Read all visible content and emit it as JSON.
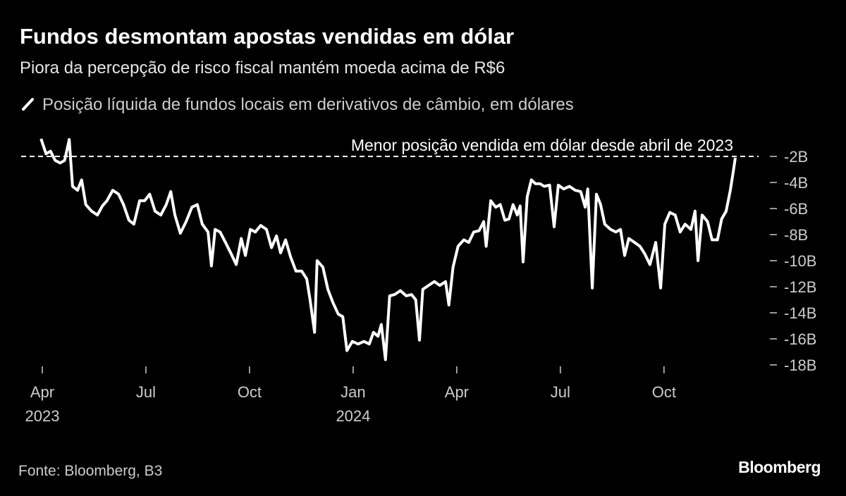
{
  "chart_data": {
    "type": "line",
    "title": "Fundos desmontam apostas vendidas em dólar",
    "subtitle": "Piora da percepção de risco fiscal mantém moeda acima de R$6",
    "source": "Fonte: Bloomberg, B3",
    "brand": "Bloomberg",
    "reference_line": {
      "value": -2,
      "label": "Menor posição vendida em dólar desde abril de 2023"
    },
    "x": [
      2023.247,
      2023.259,
      2023.27,
      2023.281,
      2023.293,
      2023.304,
      2023.315,
      2023.323,
      2023.335,
      2023.345,
      2023.355,
      2023.369,
      2023.383,
      2023.395,
      2023.406,
      2023.42,
      2023.434,
      2023.446,
      2023.459,
      2023.471,
      2023.485,
      2023.497,
      2023.509,
      2023.522,
      2023.536,
      2023.549,
      2023.56,
      2023.57,
      2023.583,
      2023.597,
      2023.611,
      2023.624,
      2023.636,
      2023.65,
      2023.658,
      2023.667,
      2023.679,
      2023.692,
      2023.706,
      2023.718,
      2023.73,
      2023.74,
      2023.752,
      2023.764,
      2023.777,
      2023.791,
      2023.803,
      2023.815,
      2023.825,
      2023.837,
      2023.849,
      2023.862,
      2023.876,
      2023.888,
      2023.896,
      2023.907,
      2023.913,
      2023.927,
      2023.939,
      2023.951,
      2023.964,
      2023.975,
      2023.985,
      2023.998,
      2024.012,
      2024.026,
      2024.039,
      2024.049,
      2024.06,
      2024.068,
      2024.078,
      2024.088,
      2024.1,
      2024.114,
      2024.128,
      2024.141,
      2024.151,
      2024.16,
      2024.168,
      2024.182,
      2024.196,
      2024.209,
      2024.223,
      2024.231,
      2024.241,
      2024.253,
      2024.267,
      2024.279,
      2024.291,
      2024.304,
      2024.315,
      2024.321,
      2024.332,
      2024.344,
      2024.355,
      2024.366,
      2024.376,
      2024.386,
      2024.396,
      2024.403,
      2024.41,
      2024.42,
      2024.43,
      2024.44,
      2024.451,
      2024.461,
      2024.474,
      2024.485,
      2024.495,
      2024.508,
      2024.522,
      2024.536,
      2024.549,
      2024.56,
      2024.566,
      2024.577,
      2024.587,
      2024.597,
      2024.607,
      2024.621,
      2024.634,
      2024.645,
      2024.655,
      2024.665,
      2024.679,
      2024.692,
      2024.704,
      2024.716,
      2024.73,
      2024.742,
      2024.752,
      2024.764,
      2024.777,
      2024.789,
      2024.801,
      2024.815,
      2024.825,
      2024.832,
      2024.842,
      2024.855,
      2024.866,
      2024.879,
      2024.889,
      2024.9,
      2024.91,
      2024.917,
      2024.922
    ],
    "series": [
      {
        "name": "Posição líquida de fundos locais em derivativos de câmbio, em dólares",
        "color": "#ffffff",
        "values": [
          -0.65,
          -1.8,
          -1.6,
          -2.3,
          -2.5,
          -2.3,
          -0.7,
          -4.3,
          -4.6,
          -3.8,
          -5.7,
          -6.2,
          -6.5,
          -5.8,
          -5.4,
          -4.6,
          -4.9,
          -5.7,
          -6.9,
          -7.2,
          -5.4,
          -5.4,
          -4.9,
          -6.2,
          -6.5,
          -5.7,
          -4.7,
          -6.5,
          -7.9,
          -7.0,
          -5.9,
          -5.7,
          -7.2,
          -7.8,
          -10.4,
          -7.6,
          -7.8,
          -8.6,
          -9.5,
          -10.3,
          -8.3,
          -9.6,
          -7.6,
          -7.8,
          -7.3,
          -7.6,
          -9.0,
          -8.1,
          -9.4,
          -8.4,
          -9.7,
          -10.8,
          -10.8,
          -11.4,
          -13.0,
          -15.5,
          -10.0,
          -10.5,
          -12.2,
          -13.2,
          -14.1,
          -14.3,
          -16.9,
          -16.2,
          -16.4,
          -16.2,
          -16.4,
          -15.5,
          -15.8,
          -14.9,
          -17.6,
          -12.7,
          -12.6,
          -12.3,
          -12.7,
          -12.6,
          -13.0,
          -16.1,
          -12.2,
          -11.9,
          -11.6,
          -11.9,
          -11.6,
          -13.4,
          -10.5,
          -8.9,
          -8.4,
          -8.6,
          -7.8,
          -7.7,
          -7.0,
          -8.9,
          -5.4,
          -5.9,
          -5.7,
          -6.9,
          -6.8,
          -5.7,
          -6.5,
          -5.8,
          -10.1,
          -5.1,
          -3.8,
          -4.1,
          -4.1,
          -4.3,
          -4.2,
          -7.4,
          -4.2,
          -4.5,
          -4.3,
          -4.6,
          -4.7,
          -5.9,
          -4.5,
          -12.1,
          -4.9,
          -5.7,
          -7.2,
          -7.6,
          -7.8,
          -7.6,
          -9.6,
          -8.3,
          -8.6,
          -8.9,
          -9.5,
          -10.3,
          -8.6,
          -12.1,
          -7.2,
          -6.3,
          -6.5,
          -7.8,
          -7.2,
          -7.6,
          -6.2,
          -10.0,
          -6.5,
          -7.0,
          -8.4,
          -8.4,
          -6.8,
          -6.2,
          -4.6,
          -3.2,
          -2.1
        ]
      }
    ],
    "xlim": [
      2023.216,
      2024.985
    ],
    "xticks": [
      {
        "value": 2023.25,
        "label": "Apr"
      },
      {
        "value": 2023.5,
        "label": "Jul"
      },
      {
        "value": 2023.75,
        "label": "Oct"
      },
      {
        "value": 2024.0,
        "label": "Jan"
      },
      {
        "value": 2024.25,
        "label": "Apr"
      },
      {
        "value": 2024.5,
        "label": "Jul"
      },
      {
        "value": 2024.75,
        "label": "Oct"
      }
    ],
    "xtick_years": [
      {
        "value": 2023.25,
        "label": "2023"
      },
      {
        "value": 2024.0,
        "label": "2024"
      }
    ],
    "ylim": [
      -18.22,
      -0.54
    ],
    "yticks": [
      {
        "value": -2,
        "label": "-2B"
      },
      {
        "value": -4,
        "label": "-4B"
      },
      {
        "value": -6,
        "label": "-6B"
      },
      {
        "value": -8,
        "label": "-8B"
      },
      {
        "value": -10,
        "label": "-10B"
      },
      {
        "value": -12,
        "label": "-12B"
      },
      {
        "value": -14,
        "label": "-14B"
      },
      {
        "value": -16,
        "label": "-16B"
      },
      {
        "value": -18,
        "label": "-18B"
      }
    ]
  }
}
